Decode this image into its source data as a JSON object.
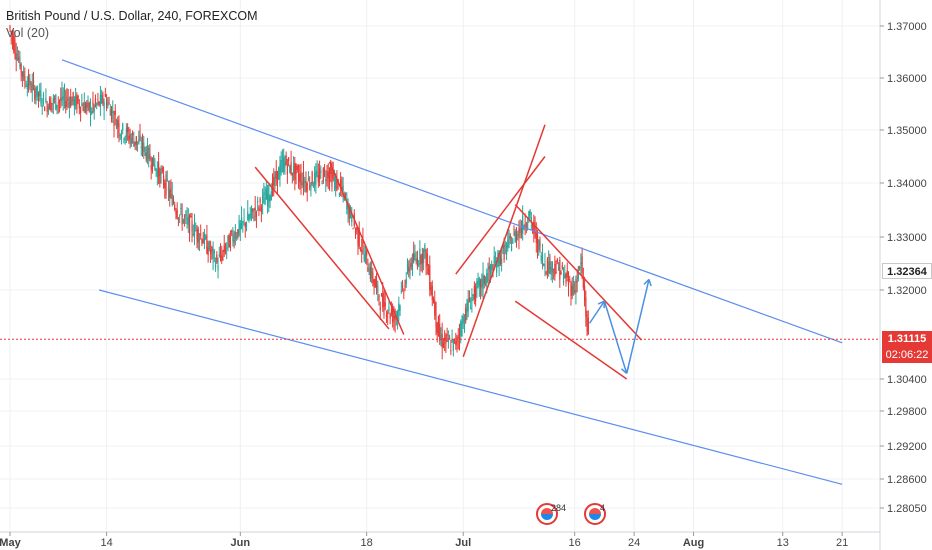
{
  "legend": {
    "title": "British Pound / U.S. Dollar, 240, FOREXCOM",
    "volume": "Vol (20)"
  },
  "price_axis": {
    "current_price": "1.32364",
    "last_price": "1.31115",
    "countdown": "02:06:22"
  },
  "events": [
    {
      "label": "284"
    },
    {
      "label": "4"
    }
  ],
  "colors": {
    "up": "#26a69a",
    "down": "#e53935",
    "channel": "#5b8def",
    "pattern": "#e53935",
    "projection": "#4a90e2",
    "grid": "#eef0f3"
  },
  "chart_data": {
    "type": "line",
    "title": "British Pound / U.S. Dollar, 240, FOREXCOM",
    "xlabel": "",
    "ylabel": "",
    "x_tick_labels": [
      "May",
      "14",
      "Jun",
      "18",
      "Jul",
      "16",
      "24",
      "Aug",
      "13",
      "21"
    ],
    "y_tick_labels": [
      "1.37000",
      "1.36000",
      "1.35000",
      "1.34000",
      "1.33000",
      "1.32000",
      "1.30400",
      "1.29800",
      "1.29200",
      "1.28600",
      "1.28050"
    ],
    "grid": true,
    "series": [
      {
        "values": [
          [
            "2018-05-01",
            1.37
          ],
          [
            "2018-05-03",
            1.36
          ],
          [
            "2018-05-06",
            1.355
          ],
          [
            "2018-05-09",
            1.356
          ],
          [
            "2018-05-12",
            1.354
          ],
          [
            "2018-05-14",
            1.356
          ],
          [
            "2018-05-16",
            1.35
          ],
          [
            "2018-05-19",
            1.347
          ],
          [
            "2018-05-22",
            1.34
          ],
          [
            "2018-05-24",
            1.334
          ],
          [
            "2018-05-27",
            1.33
          ],
          [
            "2018-05-29",
            1.325
          ],
          [
            "2018-05-31",
            1.33
          ],
          [
            "2018-06-02",
            1.333
          ],
          [
            "2018-06-05",
            1.338
          ],
          [
            "2018-06-07",
            1.344
          ],
          [
            "2018-06-10",
            1.34
          ],
          [
            "2018-06-13",
            1.342
          ],
          [
            "2018-06-15",
            1.338
          ],
          [
            "2018-06-18",
            1.326
          ],
          [
            "2018-06-20",
            1.318
          ],
          [
            "2018-06-22",
            1.315
          ],
          [
            "2018-06-24",
            1.325
          ],
          [
            "2018-06-26",
            1.327
          ],
          [
            "2018-06-28",
            1.311
          ],
          [
            "2018-06-30",
            1.31
          ],
          [
            "2018-07-02",
            1.318
          ],
          [
            "2018-07-04",
            1.322
          ],
          [
            "2018-07-06",
            1.326
          ],
          [
            "2018-07-08",
            1.33
          ],
          [
            "2018-07-10",
            1.334
          ],
          [
            "2018-07-12",
            1.325
          ],
          [
            "2018-07-14",
            1.324
          ],
          [
            "2018-07-16",
            1.32
          ],
          [
            "2018-07-17",
            1.325
          ],
          [
            "2018-07-18",
            1.3111
          ]
        ]
      }
    ],
    "projection": [
      [
        "2018-07-18",
        1.314
      ],
      [
        "2018-07-20",
        1.318
      ],
      [
        "2018-07-23",
        1.305
      ],
      [
        "2018-07-26",
        1.322
      ]
    ],
    "trend_lines": [
      {
        "name": "channel-upper",
        "from": [
          "2018-05-08",
          1.3635
        ],
        "to": [
          "2018-08-21",
          1.3105
        ]
      },
      {
        "name": "channel-lower",
        "from": [
          "2018-05-13",
          1.32
        ],
        "to": [
          "2018-08-21",
          1.285
        ]
      }
    ],
    "pattern_lines": [
      {
        "name": "wedge-1a",
        "from": [
          "2018-06-03",
          1.343
        ],
        "to": [
          "2018-06-21",
          1.313
        ]
      },
      {
        "name": "wedge-1b",
        "from": [
          "2018-06-13",
          1.344
        ],
        "to": [
          "2018-06-23",
          1.312
        ]
      },
      {
        "name": "rising-1",
        "from": [
          "2018-07-01",
          1.308
        ],
        "to": [
          "2018-07-12",
          1.351
        ]
      },
      {
        "name": "rising-2",
        "from": [
          "2018-06-30",
          1.323
        ],
        "to": [
          "2018-07-12",
          1.345
        ]
      },
      {
        "name": "flag-top",
        "from": [
          "2018-07-08",
          1.336
        ],
        "to": [
          "2018-07-25",
          1.311
        ]
      },
      {
        "name": "flag-bot",
        "from": [
          "2018-07-08",
          1.318
        ],
        "to": [
          "2018-07-23",
          1.304
        ]
      }
    ],
    "current_price_line": 1.31115
  }
}
